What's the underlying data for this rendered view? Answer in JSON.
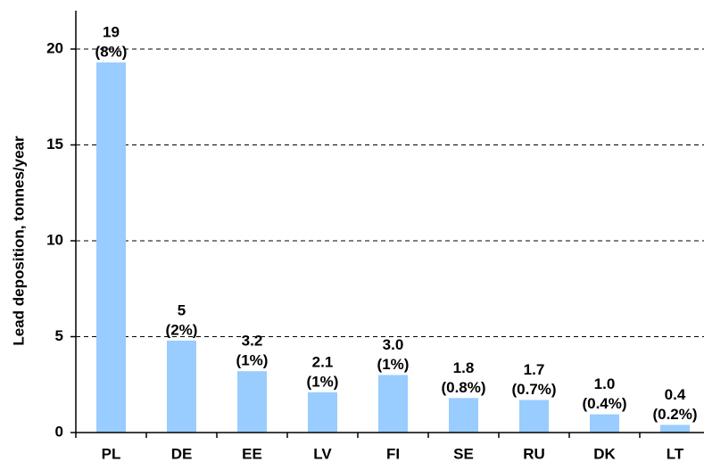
{
  "chart_data": {
    "type": "bar",
    "y_label": "Lead deposition, tonnes/year",
    "categories": [
      "PL",
      "DE",
      "EE",
      "LV",
      "FI",
      "SE",
      "RU",
      "DK",
      "LT"
    ],
    "values": [
      19.3,
      4.8,
      3.2,
      2.1,
      3.0,
      1.8,
      1.7,
      0.95,
      0.4
    ],
    "value_labels": [
      "19",
      "5",
      "3.2",
      "2.1",
      "3.0",
      "1.8",
      "1.7",
      "1.0",
      "0.4"
    ],
    "share_labels": [
      "(8%)",
      "(2%)",
      "(1%)",
      "(1%)",
      "(1%)",
      "(0.8%)",
      "(0.7%)",
      "(0.4%)",
      "(0.2%)"
    ],
    "color": "#99ccff",
    "ylim": [
      0,
      22
    ],
    "yticks": [
      0,
      5,
      10,
      15,
      20
    ],
    "grid": true
  }
}
